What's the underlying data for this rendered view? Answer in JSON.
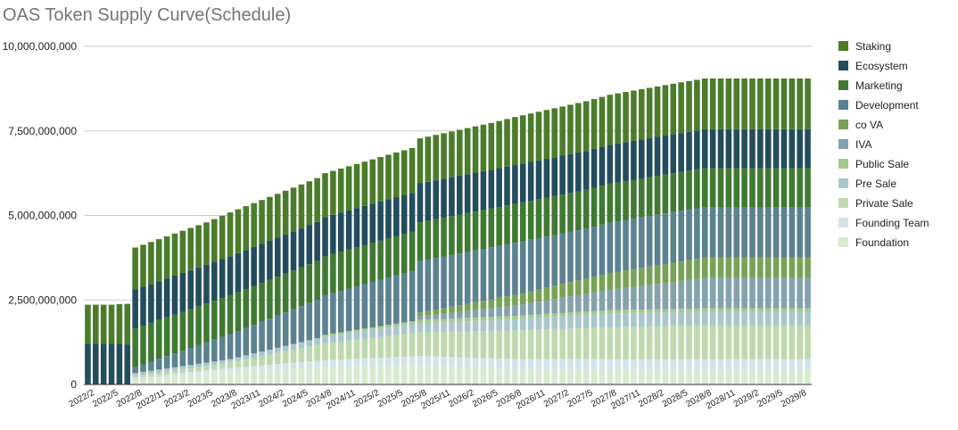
{
  "chart_data": {
    "type": "bar",
    "stacked": true,
    "title": "OAS Token Supply Curve(Schedule)",
    "xlabel": "",
    "ylabel": "",
    "ylim": [
      0,
      10000000000
    ],
    "yticks": [
      0,
      2500000000,
      5000000000,
      7500000000,
      10000000000
    ],
    "ytick_labels": [
      "0",
      "2,500,000,000",
      "5,000,000,000",
      "7,500,000,000",
      "10,000,000,000"
    ],
    "grid": true,
    "legend_position": "right",
    "start_month": "2022/2",
    "num_bars": 92,
    "tick_labels": [
      "2022/2",
      "2022/5",
      "2022/8",
      "2022/11",
      "2023/2",
      "2023/5",
      "2023/8",
      "2023/11",
      "2024/2",
      "2024/5",
      "2024/8",
      "2024/11",
      "2025/2",
      "2025/5",
      "2025/8",
      "2025/11",
      "2026/2",
      "2026/5",
      "2026/8",
      "2026/11",
      "2027/2",
      "2027/5",
      "2027/8",
      "2027/11",
      "2028/2",
      "2028/5",
      "2028/8",
      "2028/11",
      "2029/2",
      "2029/5",
      "2029/8"
    ],
    "series": [
      {
        "name": "Staking",
        "color": "#4a7c2a",
        "schedule": [
          [
            0,
            1160000000
          ],
          [
            1,
            1160000000
          ],
          [
            2,
            1160000000
          ],
          [
            3,
            1160000000
          ],
          [
            4,
            1180000000
          ],
          [
            6,
            1240000000
          ],
          [
            15,
            1250000000
          ],
          [
            18,
            1300000000
          ],
          [
            27,
            1300000000
          ],
          [
            30,
            1300000000
          ],
          [
            39,
            1320000000
          ],
          [
            42,
            1330000000
          ],
          [
            51,
            1380000000
          ],
          [
            54,
            1420000000
          ],
          [
            63,
            1470000000
          ],
          [
            66,
            1480000000
          ],
          [
            75,
            1500000000
          ],
          [
            91,
            1500000000
          ]
        ]
      },
      {
        "name": "Ecosystem",
        "color": "#234d5e",
        "schedule": [
          [
            0,
            1200000000
          ],
          [
            1,
            1200000000
          ],
          [
            4,
            1200000000
          ],
          [
            6,
            1150000000
          ],
          [
            18,
            1150000000
          ],
          [
            27,
            1150000000
          ],
          [
            30,
            1160000000
          ],
          [
            39,
            1160000000
          ],
          [
            42,
            1150000000
          ],
          [
            51,
            1150000000
          ],
          [
            54,
            1150000000
          ],
          [
            63,
            1150000000
          ],
          [
            66,
            1150000000
          ],
          [
            91,
            1150000000
          ]
        ]
      },
      {
        "name": "Marketing",
        "color": "#3f7a32",
        "schedule": [
          [
            0,
            0
          ],
          [
            5,
            0
          ],
          [
            6,
            1150000000
          ],
          [
            18,
            1150000000
          ],
          [
            27,
            1150000000
          ],
          [
            30,
            1150000000
          ],
          [
            39,
            1150000000
          ],
          [
            42,
            1150000000
          ],
          [
            51,
            1150000000
          ],
          [
            54,
            1150000000
          ],
          [
            63,
            1150000000
          ],
          [
            66,
            1150000000
          ],
          [
            91,
            1150000000
          ]
        ]
      },
      {
        "name": "Development",
        "color": "#5b8290",
        "schedule": [
          [
            0,
            0
          ],
          [
            5,
            0
          ],
          [
            6,
            170000000
          ],
          [
            18,
            740000000
          ],
          [
            30,
            1170000000
          ],
          [
            42,
            1520000000
          ],
          [
            54,
            1540000000
          ],
          [
            63,
            1470000000
          ],
          [
            66,
            1490000000
          ],
          [
            75,
            1500000000
          ],
          [
            91,
            1500000000
          ]
        ]
      },
      {
        "name": "co VA",
        "color": "#78a255",
        "schedule": [
          [
            0,
            0
          ],
          [
            41,
            0
          ],
          [
            42,
            120000000
          ],
          [
            54,
            320000000
          ],
          [
            66,
            500000000
          ],
          [
            78,
            600000000
          ],
          [
            91,
            600000000
          ]
        ]
      },
      {
        "name": "IVA",
        "color": "#82a2ae",
        "schedule": [
          [
            0,
            0
          ],
          [
            41,
            0
          ],
          [
            42,
            100000000
          ],
          [
            54,
            300000000
          ],
          [
            66,
            600000000
          ],
          [
            78,
            900000000
          ],
          [
            91,
            900000000
          ]
        ]
      },
      {
        "name": "Public Sale",
        "color": "#a4c98a",
        "schedule": [
          [
            0,
            0
          ],
          [
            29,
            0
          ],
          [
            30,
            50000000
          ],
          [
            42,
            100000000
          ],
          [
            91,
            100000000
          ]
        ]
      },
      {
        "name": "Pre Sale",
        "color": "#a9c6cd",
        "schedule": [
          [
            0,
            0
          ],
          [
            5,
            0
          ],
          [
            6,
            80000000
          ],
          [
            18,
            100000000
          ],
          [
            30,
            200000000
          ],
          [
            42,
            270000000
          ],
          [
            54,
            330000000
          ],
          [
            66,
            400000000
          ],
          [
            78,
            400000000
          ],
          [
            91,
            400000000
          ]
        ]
      },
      {
        "name": "Private Sale",
        "color": "#bdd9ad",
        "schedule": [
          [
            0,
            0
          ],
          [
            5,
            0
          ],
          [
            6,
            60000000
          ],
          [
            18,
            160000000
          ],
          [
            30,
            500000000
          ],
          [
            42,
            700000000
          ],
          [
            54,
            850000000
          ],
          [
            66,
            950000000
          ],
          [
            78,
            1000000000
          ],
          [
            91,
            1000000000
          ]
        ]
      },
      {
        "name": "Founding Team",
        "color": "#d3e3e8",
        "schedule": [
          [
            0,
            0
          ],
          [
            5,
            0
          ],
          [
            6,
            50000000
          ],
          [
            18,
            100000000
          ],
          [
            30,
            200000000
          ],
          [
            42,
            280000000
          ],
          [
            54,
            300000000
          ],
          [
            91,
            300000000
          ]
        ]
      },
      {
        "name": "Foundation",
        "color": "#d6ebcf",
        "schedule": [
          [
            0,
            0
          ],
          [
            5,
            0
          ],
          [
            6,
            150000000
          ],
          [
            18,
            390000000
          ],
          [
            30,
            520000000
          ],
          [
            42,
            560000000
          ],
          [
            54,
            450000000
          ],
          [
            66,
            450000000
          ],
          [
            91,
            450000000
          ]
        ]
      }
    ]
  }
}
